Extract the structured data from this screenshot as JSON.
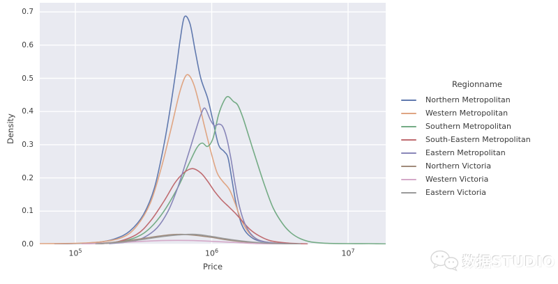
{
  "figure": {
    "background": "#ffffff",
    "plot_background": "#e9eaf1",
    "gridline_color": "#ffffff",
    "text_color": "#3b3b3b"
  },
  "watermark": {
    "icon": "wechat-icon",
    "text": "数据STUDIO"
  },
  "chart_data": {
    "type": "line",
    "subtype": "kde-density",
    "title": "",
    "xlabel": "Price",
    "ylabel": "Density",
    "x_scale": "log10",
    "x_range_log10": [
      4.739,
      7.276
    ],
    "ylim": [
      0,
      0.7275
    ],
    "grid": true,
    "legend_title": "Regionname",
    "legend_position": "right",
    "x_ticks": [
      {
        "log10": 5,
        "base": "10",
        "exp": "5"
      },
      {
        "log10": 6,
        "base": "10",
        "exp": "6"
      },
      {
        "log10": 7,
        "base": "10",
        "exp": "7"
      }
    ],
    "y_ticks": [
      {
        "value": 0.0,
        "label": "0.0"
      },
      {
        "value": 0.1,
        "label": "0.1"
      },
      {
        "value": 0.2,
        "label": "0.2"
      },
      {
        "value": 0.3,
        "label": "0.3"
      },
      {
        "value": 0.4,
        "label": "0.4"
      },
      {
        "value": 0.5,
        "label": "0.5"
      },
      {
        "value": 0.6,
        "label": "0.6"
      },
      {
        "value": 0.7,
        "label": "0.7"
      }
    ],
    "series": [
      {
        "name": "Northern Metropolitan",
        "color": "#6079ae",
        "points": [
          [
            4.85,
            0.001
          ],
          [
            5.05,
            0.003
          ],
          [
            5.2,
            0.008
          ],
          [
            5.3,
            0.018
          ],
          [
            5.4,
            0.04
          ],
          [
            5.5,
            0.09
          ],
          [
            5.58,
            0.17
          ],
          [
            5.65,
            0.3
          ],
          [
            5.7,
            0.42
          ],
          [
            5.74,
            0.53
          ],
          [
            5.77,
            0.62
          ],
          [
            5.8,
            0.685
          ],
          [
            5.84,
            0.665
          ],
          [
            5.88,
            0.58
          ],
          [
            5.92,
            0.5
          ],
          [
            5.97,
            0.44
          ],
          [
            6.01,
            0.37
          ],
          [
            6.05,
            0.3
          ],
          [
            6.09,
            0.28
          ],
          [
            6.12,
            0.26
          ],
          [
            6.15,
            0.19
          ],
          [
            6.18,
            0.12
          ],
          [
            6.22,
            0.06
          ],
          [
            6.27,
            0.028
          ],
          [
            6.35,
            0.01
          ],
          [
            6.5,
            0.003
          ],
          [
            6.7,
            0.001
          ]
        ]
      },
      {
        "name": "Western Metropolitan",
        "color": "#dfa583",
        "points": [
          [
            4.74,
            0.002
          ],
          [
            5.0,
            0.003
          ],
          [
            5.2,
            0.008
          ],
          [
            5.35,
            0.022
          ],
          [
            5.45,
            0.055
          ],
          [
            5.55,
            0.125
          ],
          [
            5.63,
            0.23
          ],
          [
            5.7,
            0.345
          ],
          [
            5.76,
            0.45
          ],
          [
            5.8,
            0.5
          ],
          [
            5.83,
            0.51
          ],
          [
            5.87,
            0.48
          ],
          [
            5.91,
            0.42
          ],
          [
            5.95,
            0.35
          ],
          [
            6.0,
            0.27
          ],
          [
            6.04,
            0.215
          ],
          [
            6.08,
            0.19
          ],
          [
            6.13,
            0.165
          ],
          [
            6.17,
            0.125
          ],
          [
            6.21,
            0.08
          ],
          [
            6.26,
            0.042
          ],
          [
            6.32,
            0.018
          ],
          [
            6.4,
            0.007
          ],
          [
            6.55,
            0.002
          ],
          [
            6.7,
            0.001
          ]
        ]
      },
      {
        "name": "Southern Metropolitan",
        "color": "#74ab85",
        "points": [
          [
            5.15,
            0.001
          ],
          [
            5.3,
            0.006
          ],
          [
            5.45,
            0.022
          ],
          [
            5.55,
            0.05
          ],
          [
            5.65,
            0.1
          ],
          [
            5.75,
            0.17
          ],
          [
            5.83,
            0.24
          ],
          [
            5.89,
            0.29
          ],
          [
            5.93,
            0.305
          ],
          [
            5.97,
            0.295
          ],
          [
            6.01,
            0.32
          ],
          [
            6.05,
            0.39
          ],
          [
            6.09,
            0.432
          ],
          [
            6.12,
            0.445
          ],
          [
            6.16,
            0.43
          ],
          [
            6.19,
            0.42
          ],
          [
            6.23,
            0.38
          ],
          [
            6.28,
            0.315
          ],
          [
            6.33,
            0.25
          ],
          [
            6.39,
            0.175
          ],
          [
            6.45,
            0.11
          ],
          [
            6.52,
            0.062
          ],
          [
            6.58,
            0.035
          ],
          [
            6.65,
            0.017
          ],
          [
            6.73,
            0.007
          ],
          [
            6.85,
            0.003
          ],
          [
            7.0,
            0.002
          ],
          [
            7.15,
            0.002
          ],
          [
            7.28,
            0.001
          ]
        ]
      },
      {
        "name": "South-Eastern Metropolitan",
        "color": "#bf6b70",
        "points": [
          [
            5.15,
            0.001
          ],
          [
            5.3,
            0.007
          ],
          [
            5.45,
            0.03
          ],
          [
            5.55,
            0.07
          ],
          [
            5.65,
            0.13
          ],
          [
            5.73,
            0.185
          ],
          [
            5.8,
            0.217
          ],
          [
            5.86,
            0.228
          ],
          [
            5.92,
            0.215
          ],
          [
            5.97,
            0.19
          ],
          [
            6.02,
            0.16
          ],
          [
            6.07,
            0.135
          ],
          [
            6.12,
            0.115
          ],
          [
            6.17,
            0.095
          ],
          [
            6.22,
            0.072
          ],
          [
            6.28,
            0.045
          ],
          [
            6.35,
            0.025
          ],
          [
            6.43,
            0.011
          ],
          [
            6.55,
            0.004
          ],
          [
            6.7,
            0.001
          ]
        ]
      },
      {
        "name": "Eastern Metropolitan",
        "color": "#8886b8",
        "points": [
          [
            5.25,
            0.002
          ],
          [
            5.4,
            0.008
          ],
          [
            5.5,
            0.02
          ],
          [
            5.6,
            0.05
          ],
          [
            5.68,
            0.1
          ],
          [
            5.75,
            0.17
          ],
          [
            5.82,
            0.26
          ],
          [
            5.88,
            0.34
          ],
          [
            5.92,
            0.39
          ],
          [
            5.95,
            0.41
          ],
          [
            5.99,
            0.375
          ],
          [
            6.02,
            0.357
          ],
          [
            6.05,
            0.362
          ],
          [
            6.08,
            0.355
          ],
          [
            6.11,
            0.32
          ],
          [
            6.14,
            0.26
          ],
          [
            6.17,
            0.185
          ],
          [
            6.2,
            0.12
          ],
          [
            6.24,
            0.065
          ],
          [
            6.29,
            0.03
          ],
          [
            6.35,
            0.012
          ],
          [
            6.45,
            0.004
          ],
          [
            6.6,
            0.001
          ]
        ]
      },
      {
        "name": "Northern Victoria",
        "color": "#a08a7a",
        "points": [
          [
            5.05,
            0.001
          ],
          [
            5.25,
            0.005
          ],
          [
            5.4,
            0.012
          ],
          [
            5.55,
            0.021
          ],
          [
            5.68,
            0.028
          ],
          [
            5.78,
            0.03
          ],
          [
            5.88,
            0.027
          ],
          [
            6.0,
            0.021
          ],
          [
            6.12,
            0.013
          ],
          [
            6.25,
            0.007
          ],
          [
            6.4,
            0.003
          ],
          [
            6.6,
            0.001
          ]
        ]
      },
      {
        "name": "Western Victoria",
        "color": "#d4a9c8",
        "points": [
          [
            5.05,
            0.001
          ],
          [
            5.25,
            0.004
          ],
          [
            5.45,
            0.008
          ],
          [
            5.6,
            0.011
          ],
          [
            5.75,
            0.012
          ],
          [
            5.9,
            0.011
          ],
          [
            6.05,
            0.008
          ],
          [
            6.2,
            0.005
          ],
          [
            6.35,
            0.002
          ],
          [
            6.55,
            0.001
          ]
        ]
      },
      {
        "name": "Eastern Victoria",
        "color": "#999999",
        "points": [
          [
            5.15,
            0.001
          ],
          [
            5.35,
            0.007
          ],
          [
            5.5,
            0.015
          ],
          [
            5.65,
            0.024
          ],
          [
            5.78,
            0.029
          ],
          [
            5.88,
            0.03
          ],
          [
            5.98,
            0.025
          ],
          [
            6.1,
            0.017
          ],
          [
            6.22,
            0.01
          ],
          [
            6.35,
            0.005
          ],
          [
            6.5,
            0.002
          ],
          [
            6.65,
            0.001
          ]
        ]
      }
    ]
  }
}
